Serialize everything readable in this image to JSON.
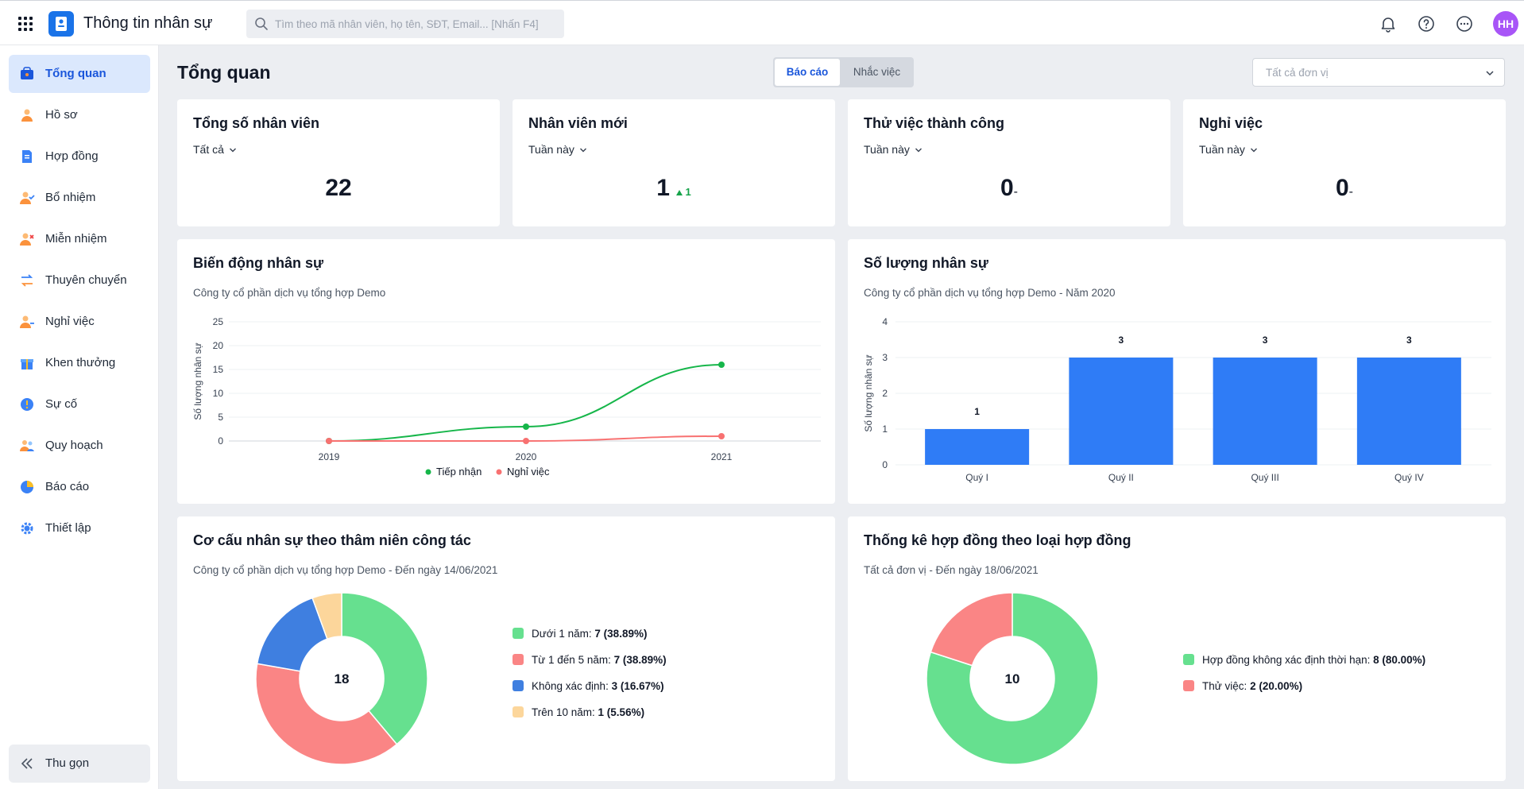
{
  "app": {
    "title": "Thông tin nhân sự",
    "search_placeholder": "Tìm theo mã nhân viên, họ tên, SĐT, Email... [Nhấn F4]",
    "avatar_initials": "HH",
    "accent_color": "#1a73e8"
  },
  "sidebar": {
    "items": [
      {
        "label": "Tổng quan",
        "icon": "overview-icon",
        "active": true
      },
      {
        "label": "Hồ sơ",
        "icon": "profile-icon"
      },
      {
        "label": "Hợp đồng",
        "icon": "contract-icon"
      },
      {
        "label": "Bổ nhiệm",
        "icon": "appoint-icon"
      },
      {
        "label": "Miễn nhiệm",
        "icon": "dismiss-icon"
      },
      {
        "label": "Thuyên chuyển",
        "icon": "transfer-icon"
      },
      {
        "label": "Nghỉ việc",
        "icon": "resign-icon"
      },
      {
        "label": "Khen thưởng",
        "icon": "gift-icon"
      },
      {
        "label": "Sự cố",
        "icon": "incident-icon"
      },
      {
        "label": "Quy hoạch",
        "icon": "planning-icon"
      },
      {
        "label": "Báo cáo",
        "icon": "report-icon"
      },
      {
        "label": "Thiết lập",
        "icon": "settings-icon"
      }
    ],
    "collapse_label": "Thu gọn"
  },
  "header": {
    "page_title": "Tổng quan",
    "tabs": [
      "Báo cáo",
      "Nhắc việc"
    ],
    "unit_placeholder": "Tất cả đơn vị"
  },
  "stats": [
    {
      "title": "Tổng số nhân viên",
      "period": "Tất cả",
      "value": "22"
    },
    {
      "title": "Nhân viên mới",
      "period": "Tuần này",
      "value": "1",
      "delta": "1"
    },
    {
      "title": "Thử việc thành công",
      "period": "Tuần này",
      "value": "0",
      "suffix": "-"
    },
    {
      "title": "Nghỉ việc",
      "period": "Tuần này",
      "value": "0",
      "suffix": "-"
    }
  ],
  "charts": {
    "movement": {
      "title": "Biến động nhân sự",
      "subtitle": "Công ty cổ phần dịch vụ tổng hợp Demo"
    },
    "headcount": {
      "title": "Số lượng nhân sự",
      "subtitle": "Công ty cổ phần dịch vụ tổng hợp Demo - Năm 2020"
    },
    "seniority": {
      "title": "Cơ cấu nhân sự theo thâm niên công tác",
      "subtitle": "Công ty cổ phần dịch vụ tổng hợp Demo - Đến ngày 14/06/2021"
    },
    "contracts": {
      "title": "Thống kê hợp đồng theo loại hợp đồng",
      "subtitle": "Tất cả đơn vị - Đến ngày 18/06/2021"
    }
  },
  "chart_data": [
    {
      "type": "line",
      "x": [
        "2019",
        "2020",
        "2021"
      ],
      "series": [
        {
          "name": "Tiếp nhận",
          "values": [
            0,
            3,
            16
          ],
          "color": "#16b64a"
        },
        {
          "name": "Nghỉ việc",
          "values": [
            0,
            0,
            1
          ],
          "color": "#f87171"
        }
      ],
      "ylabel": "Số lượng nhân sự",
      "ylim": [
        0,
        25
      ],
      "yticks": [
        "0",
        "5",
        "10",
        "15",
        "20",
        "25"
      ],
      "grid": true,
      "legend": "bottom"
    },
    {
      "type": "bar",
      "categories": [
        "Quý I",
        "Quý II",
        "Quý III",
        "Quý IV"
      ],
      "values": [
        1,
        3,
        3,
        3
      ],
      "ylabel": "Số lượng nhân sự",
      "ylim": [
        0,
        4
      ],
      "yticks": [
        "0",
        "1",
        "2",
        "3",
        "4"
      ],
      "color": "#2f7cf6",
      "grid": true
    },
    {
      "type": "pie",
      "center_label": "18",
      "slices": [
        {
          "label": "Dưới 1 năm:",
          "value": 7,
          "display": "7 (38.89%)",
          "color": "#66e08f"
        },
        {
          "label": "Từ 1 đến 5 năm:",
          "value": 7,
          "display": "7 (38.89%)",
          "color": "#fa8585"
        },
        {
          "label": "Không xác định:",
          "value": 3,
          "display": "3 (16.67%)",
          "color": "#3f7fe0"
        },
        {
          "label": "Trên 10 năm:",
          "value": 1,
          "display": "1 (5.56%)",
          "color": "#fcd69b"
        }
      ],
      "legend": "right"
    },
    {
      "type": "pie",
      "center_label": "10",
      "slices": [
        {
          "label": "Hợp đồng không xác định thời hạn:",
          "value": 8,
          "display": "8 (80.00%)",
          "color": "#66e08f"
        },
        {
          "label": "Thử việc:",
          "value": 2,
          "display": "2 (20.00%)",
          "color": "#fa8585"
        }
      ],
      "legend": "right"
    }
  ]
}
